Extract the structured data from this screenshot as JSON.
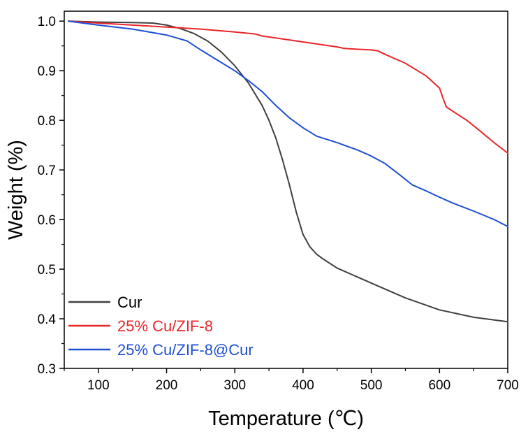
{
  "chart_data": {
    "type": "line",
    "title": "",
    "xlabel": "Temperature (℃)",
    "ylabel": "Weight (%)",
    "xlim": [
      50,
      700
    ],
    "ylim": [
      0.3,
      1.02
    ],
    "xticks": [
      100,
      200,
      300,
      400,
      500,
      600,
      700
    ],
    "xtick_labels": [
      "100",
      "200",
      "300",
      "400",
      "500",
      "600",
      "700"
    ],
    "yticks": [
      0.3,
      0.4,
      0.5,
      0.6,
      0.7,
      0.8,
      0.9,
      1.0
    ],
    "ytick_labels": [
      "0.3",
      "0.4",
      "0.5",
      "0.6",
      "0.7",
      "0.8",
      "0.9",
      "1.0"
    ],
    "grid": false,
    "legend_position": "bottom-left",
    "series": [
      {
        "name": "Cur",
        "color": "#404040",
        "x": [
          56,
          100,
          150,
          180,
          200,
          220,
          240,
          260,
          280,
          300,
          320,
          340,
          350,
          360,
          370,
          380,
          390,
          400,
          410,
          420,
          430,
          450,
          500,
          550,
          600,
          650,
          700
        ],
        "y": [
          1.0,
          0.998,
          0.997,
          0.996,
          0.992,
          0.985,
          0.975,
          0.96,
          0.938,
          0.91,
          0.875,
          0.83,
          0.8,
          0.765,
          0.72,
          0.67,
          0.615,
          0.57,
          0.545,
          0.53,
          0.52,
          0.502,
          0.472,
          0.442,
          0.418,
          0.403,
          0.394
        ]
      },
      {
        "name": "25% Cu/ZIF-8",
        "color": "#e8262a",
        "x": [
          56,
          100,
          150,
          200,
          250,
          300,
          330,
          340,
          350,
          400,
          450,
          460,
          470,
          500,
          510,
          520,
          550,
          580,
          600,
          605,
          610,
          620,
          640,
          660,
          680,
          700
        ],
        "y": [
          1.0,
          0.996,
          0.992,
          0.988,
          0.984,
          0.978,
          0.974,
          0.97,
          0.968,
          0.958,
          0.948,
          0.945,
          0.944,
          0.942,
          0.94,
          0.933,
          0.915,
          0.89,
          0.865,
          0.845,
          0.827,
          0.818,
          0.8,
          0.778,
          0.755,
          0.734
        ]
      },
      {
        "name": "25% Cu/ZIF-8@Cur",
        "color": "#1f4fd3",
        "x": [
          56,
          100,
          150,
          200,
          230,
          250,
          270,
          300,
          320,
          340,
          360,
          380,
          400,
          420,
          450,
          480,
          500,
          520,
          540,
          560,
          580,
          600,
          620,
          650,
          680,
          700
        ],
        "y": [
          1.0,
          0.992,
          0.984,
          0.972,
          0.96,
          0.942,
          0.925,
          0.9,
          0.88,
          0.858,
          0.83,
          0.805,
          0.785,
          0.768,
          0.755,
          0.74,
          0.728,
          0.713,
          0.692,
          0.67,
          0.658,
          0.645,
          0.633,
          0.617,
          0.6,
          0.586
        ]
      }
    ]
  }
}
